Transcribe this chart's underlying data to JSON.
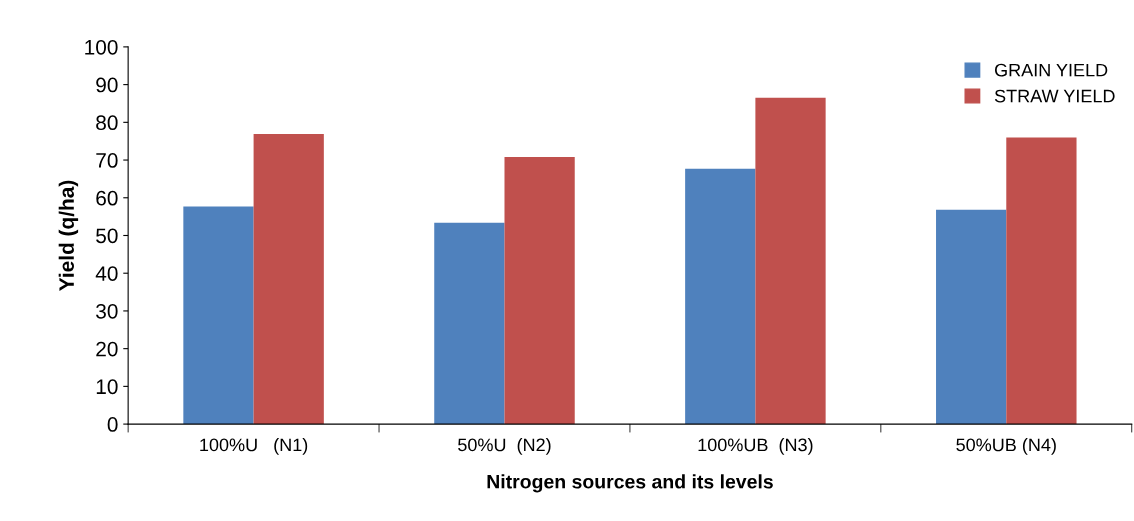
{
  "chart_data": {
    "type": "bar",
    "xlabel": "Nitrogen sources and its levels",
    "ylabel": "Yield (q/ha)",
    "categories": [
      "100%U   (N1)",
      "50%U  (N2)",
      "100%UB  (N3)",
      "50%UB (N4)"
    ],
    "series": [
      {
        "name": "GRAIN YIELD",
        "color": "#4f81bd",
        "values": [
          57.7,
          53.4,
          67.7,
          56.8
        ]
      },
      {
        "name": "STRAW YIELD",
        "color": "#c0504d",
        "values": [
          76.9,
          70.8,
          86.5,
          76.0
        ]
      }
    ],
    "ylim": [
      0,
      100
    ],
    "yticks": [
      0,
      10,
      20,
      30,
      40,
      50,
      60,
      70,
      80,
      90,
      100
    ],
    "grid": false,
    "legend": "top right"
  }
}
